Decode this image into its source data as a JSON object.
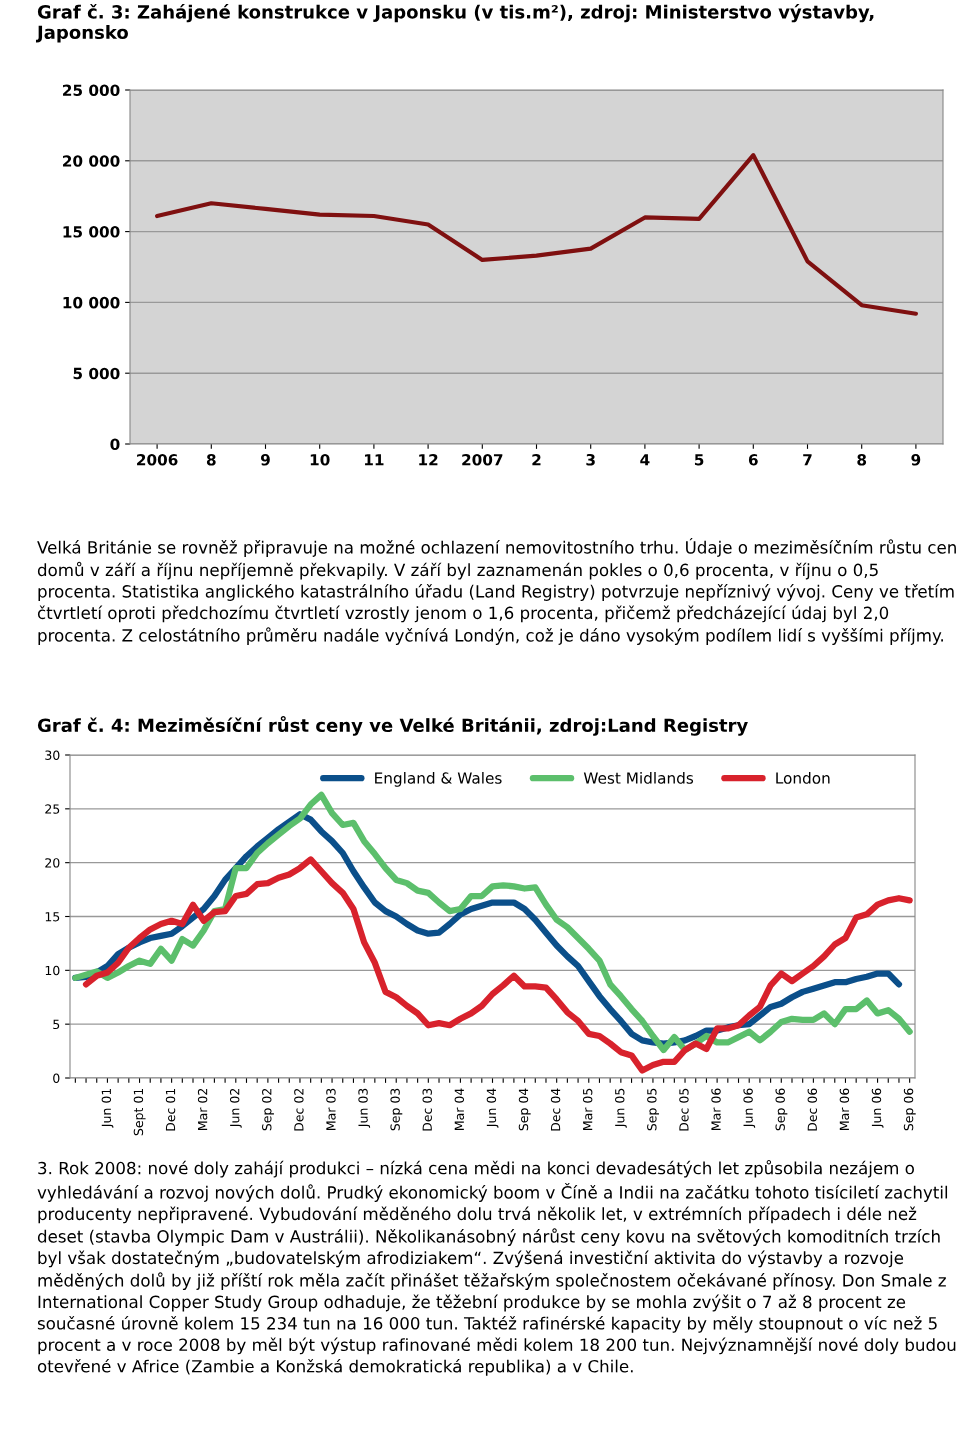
{
  "chart_data": [
    {
      "type": "line",
      "title": "Graf č. 3: Zahájené konstrukce v Japonsku (v tis.m²), zdroj: Ministerstvo výstavby, Japonsko",
      "categories": [
        "2006",
        "8",
        "9",
        "10",
        "11",
        "12",
        "2007",
        "2",
        "3",
        "4",
        "5",
        "6",
        "7",
        "8",
        "9"
      ],
      "values": [
        16100,
        17000,
        16600,
        16200,
        16100,
        15500,
        13000,
        13300,
        13800,
        16000,
        15900,
        20400,
        12900,
        9800,
        9200
      ],
      "color": "#7f1010",
      "ylim": [
        0,
        25000
      ],
      "yticks": [
        {
          "value": 0,
          "label": "0"
        },
        {
          "value": 5000,
          "label": "5 000"
        },
        {
          "value": 10000,
          "label": "10 000"
        },
        {
          "value": 15000,
          "label": "15 000"
        },
        {
          "value": 20000,
          "label": "20 000"
        },
        {
          "value": 25000,
          "label": "25 000"
        }
      ],
      "grid": "y",
      "annotations": [
        "Velká Británie se rovněž připravuje na možné ochlazení nemovitostního trhu. Údaje o meziměsíčním růstu cen domů v září a říjnu nepříjemně překvapily. V září byl zaznamenán pokles o 0,6 procenta, v říjnu o 0,5 procenta. Statistika anglického katastrálního úřadu (Land Registry) potvrzuje nepříznivý vývoj. Ceny ve třetím čtvrtletí oproti předchozímu čtvrtletí vzrostly jenom o 1,6 procenta, přičemž předcházející údaj byl 2,0 procenta. Z celostátního průměru nadále vyčnívá Londýn, což je dáno vysokým podílem lidí s vyššími příjmy."
      ]
    },
    {
      "type": "line",
      "title": "Graf č. 4: Meziměsíční růst ceny ve Velké Británii, zdroj:Land Registry",
      "categories": [
        null,
        null,
        null,
        "Jun 01",
        null,
        null,
        "Sept 01",
        null,
        null,
        "Dec 01",
        null,
        null,
        "Mar 02",
        null,
        null,
        "Jun 02",
        null,
        null,
        "Sep 02",
        null,
        null,
        "Dec 02",
        null,
        null,
        "Mar 03",
        null,
        null,
        "Jun 03",
        null,
        null,
        "Sep 03",
        null,
        null,
        "Dec 03",
        null,
        null,
        "Mar 04",
        null,
        null,
        "Jun 04",
        null,
        null,
        "Sep 04",
        null,
        null,
        "Dec 04",
        null,
        null,
        "Mar 05",
        null,
        null,
        "Jun 05",
        null,
        null,
        "Sep 05",
        null,
        null,
        "Dec 05",
        null,
        null,
        "Mar 06",
        null,
        null,
        "Jun 06",
        null,
        null,
        "Sep 06",
        null,
        null,
        "Dec 06",
        null,
        null,
        "Mar 06",
        null,
        null,
        "Jun 06",
        null,
        null,
        "Sep 06"
      ],
      "series": [
        {
          "name": "England & Wales",
          "color": "#0b4f8a",
          "values": [
            9.3,
            9.4,
            9.8,
            10.4,
            11.5,
            12.1,
            12.6,
            13.0,
            13.2,
            13.4,
            14.1,
            14.9,
            15.7,
            16.9,
            18.4,
            19.5,
            20.6,
            21.5,
            22.3,
            23.1,
            23.8,
            24.5,
            24.0,
            22.9,
            22.0,
            20.9,
            19.2,
            17.7,
            16.3,
            15.5,
            15.0,
            14.3,
            13.7,
            13.4,
            13.5,
            14.3,
            15.2,
            15.7,
            16.0,
            16.3,
            16.3,
            16.3,
            15.7,
            14.7,
            13.5,
            12.3,
            11.3,
            10.4,
            9.0,
            7.6,
            6.4,
            5.3,
            4.1,
            3.5,
            3.3,
            3.2,
            3.3,
            3.5,
            3.9,
            4.4,
            4.4,
            4.7,
            4.9,
            5.0,
            5.8,
            6.6,
            6.9,
            7.5,
            8.0,
            8.3,
            8.6,
            8.9,
            8.9,
            9.2,
            9.4,
            9.7,
            9.7,
            8.7,
            null
          ]
        },
        {
          "name": "West Midlands",
          "color": "#5cbf6c",
          "values": [
            9.3,
            9.6,
            9.9,
            9.3,
            9.8,
            10.4,
            10.9,
            10.6,
            12.0,
            10.9,
            12.9,
            12.3,
            13.7,
            15.5,
            15.7,
            19.5,
            19.5,
            20.9,
            21.8,
            22.6,
            23.4,
            24.1,
            25.4,
            26.3,
            24.6,
            23.5,
            23.7,
            22.0,
            20.8,
            19.5,
            18.4,
            18.1,
            17.4,
            17.2,
            16.3,
            15.5,
            15.7,
            16.9,
            16.9,
            17.8,
            17.9,
            17.8,
            17.6,
            17.7,
            16.1,
            14.7,
            14.0,
            13.0,
            12.0,
            10.9,
            8.7,
            7.6,
            6.4,
            5.3,
            3.9,
            2.6,
            3.8,
            2.6,
            3.2,
            3.9,
            3.3,
            3.3,
            3.8,
            4.3,
            3.5,
            4.3,
            5.2,
            5.5,
            5.4,
            5.4,
            6.0,
            5.0,
            6.4,
            6.4,
            7.2,
            6.0,
            6.3,
            5.5,
            4.3
          ]
        },
        {
          "name": "London",
          "color": "#d8222c",
          "values": [
            null,
            8.7,
            9.5,
            9.8,
            10.7,
            12.1,
            13.0,
            13.8,
            14.3,
            14.6,
            14.3,
            16.1,
            14.6,
            15.4,
            15.5,
            16.9,
            17.1,
            18.0,
            18.1,
            18.6,
            18.9,
            19.5,
            20.3,
            19.2,
            18.1,
            17.2,
            15.7,
            12.6,
            10.7,
            8.0,
            7.5,
            6.7,
            6.0,
            4.9,
            5.1,
            4.9,
            5.5,
            6.0,
            6.7,
            7.8,
            8.6,
            9.5,
            8.5,
            8.5,
            8.4,
            7.3,
            6.1,
            5.3,
            4.1,
            3.9,
            3.2,
            2.4,
            2.1,
            0.7,
            1.2,
            1.5,
            1.5,
            2.6,
            3.2,
            2.7,
            4.6,
            4.6,
            4.9,
            5.8,
            6.6,
            8.6,
            9.7,
            9.0,
            9.7,
            10.4,
            11.3,
            12.4,
            13.0,
            14.9,
            15.2,
            16.1,
            16.5,
            16.7,
            16.5
          ]
        }
      ],
      "ylim": [
        0,
        30
      ],
      "yticks": [
        0,
        5,
        10,
        15,
        20,
        25,
        30
      ],
      "grid": "y",
      "legend": "top",
      "annotations": [
        "3. Rok 2008: nové doly zahájí produkci – nízká cena mědi na konci devadesátých let způsobila nezájem o vyhledávání a rozvoj nových dolů. Prudký ekonomický boom v Číně a Indii na začátku tohoto tisíciletí zachytil producenty nepřipravené. Vybudování měděného dolu trvá několik let, v extrémních případech i déle než deset (stavba Olympic Dam v Austrálii). Několikanásobný nárůst ceny kovu na světových komoditních trzích byl však dostatečným „budovatelským afrodiziakem“. Zvýšená investiční aktivita do výstavby a rozvoje měděných dolů by již příští rok měla začít přinášet těžařským společnostem očekávané přínosy. Don Smale z International Copper Study Group odhaduje, že těžební produkce by se mohla zvýšit o 7 až 8 procent ze současné úrovně kolem 15 234 tun na 16 000 tun. Taktéž rafinérské kapacity by měly stoupnout o víc než 5 procent a v roce 2008 by měl být výstup rafinované mědi kolem 18 200 tun. Nejvýznamnější nové doly budou otevřené v Africe (Zambie a Konžská demokratická republika) a v Chile."
      ]
    }
  ]
}
